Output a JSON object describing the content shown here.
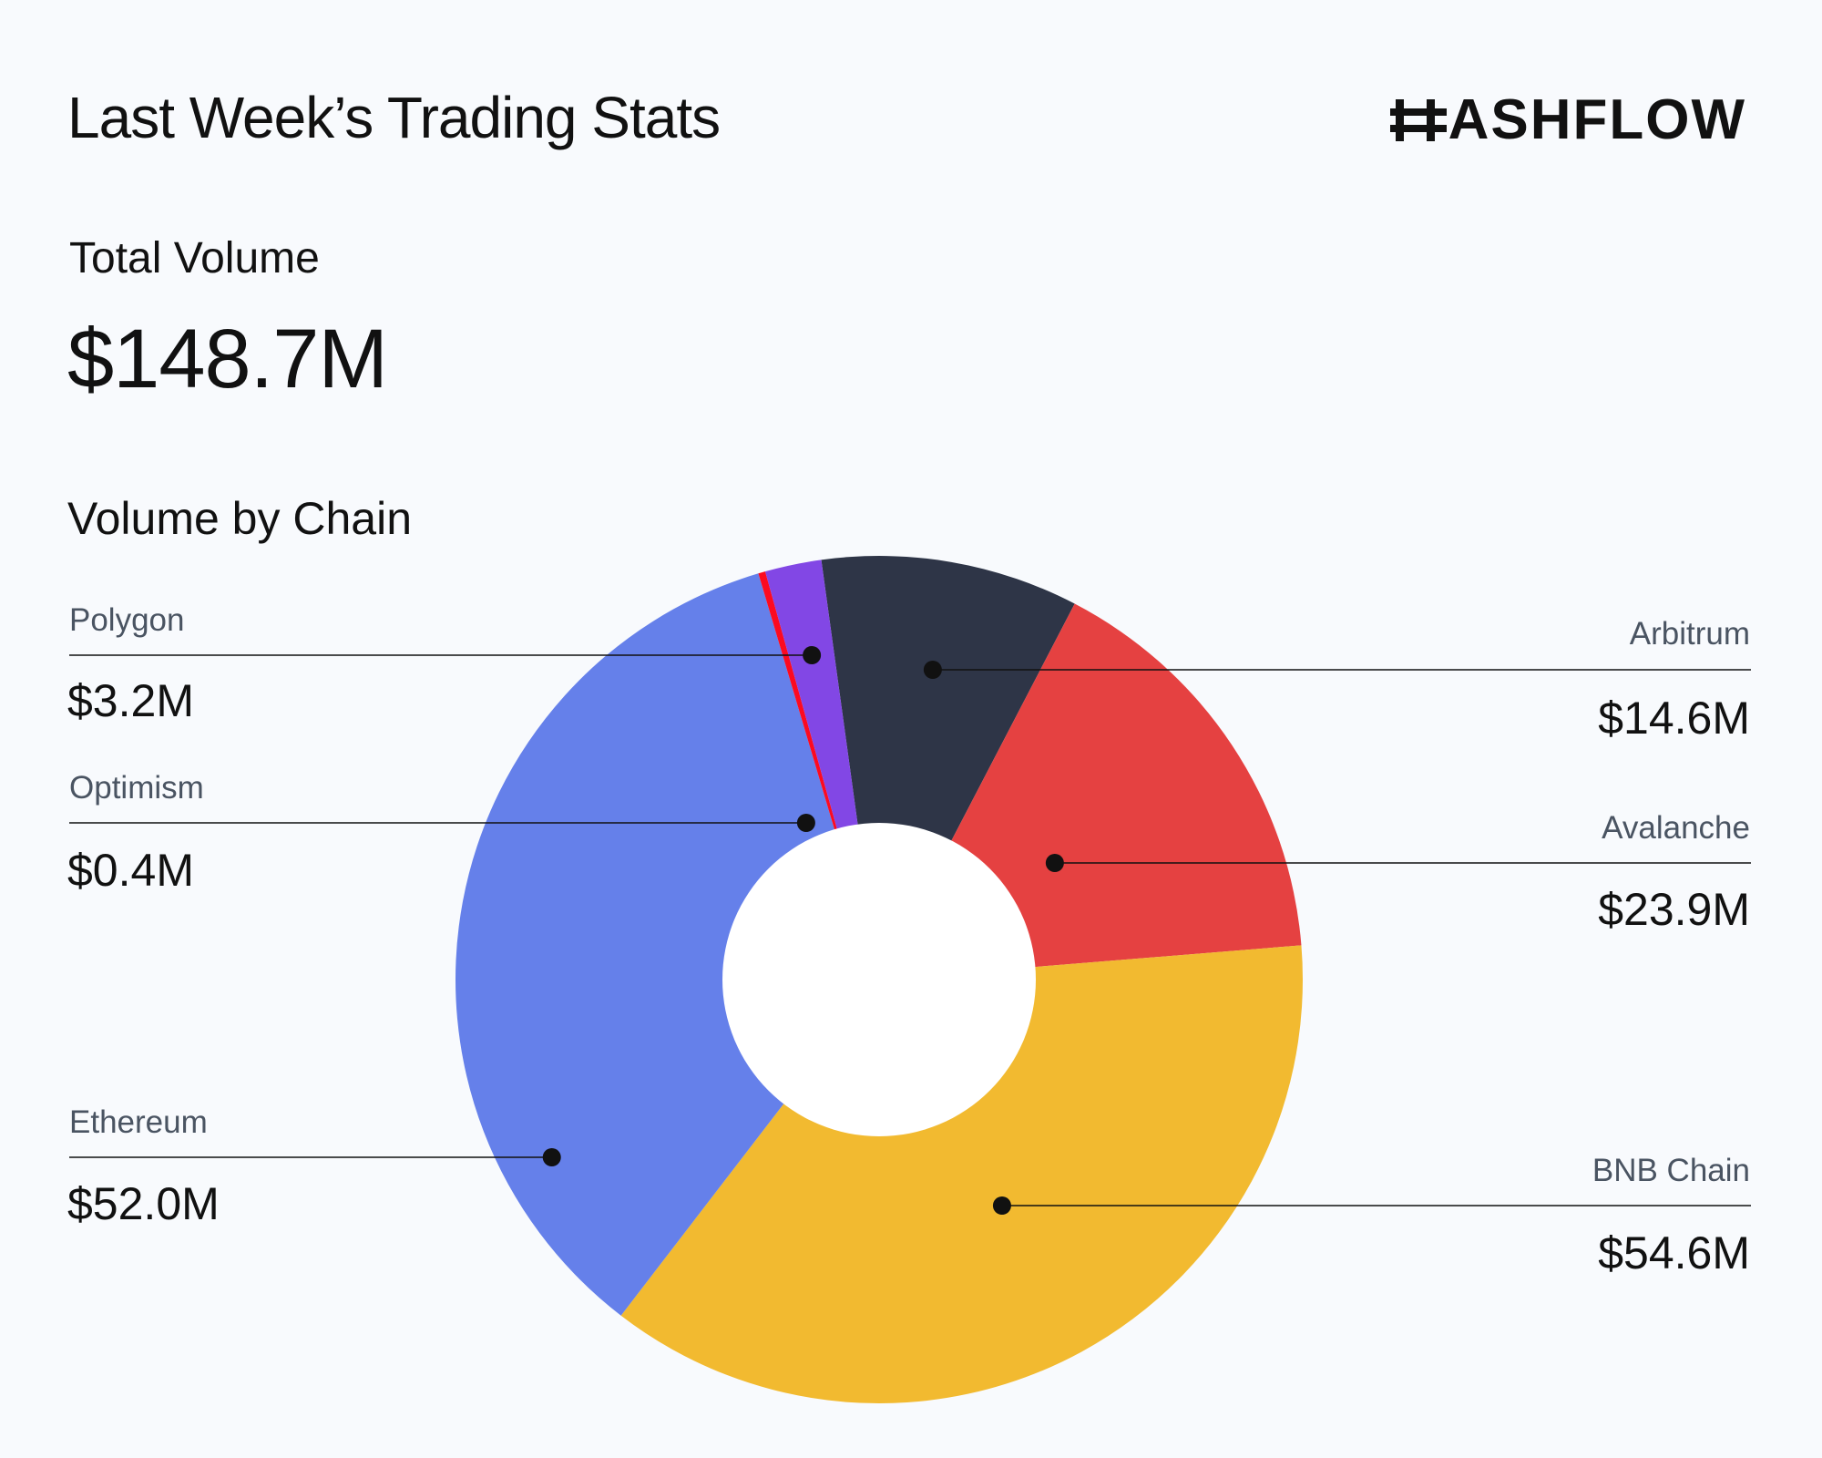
{
  "header": {
    "title": "Last Week’s Trading Stats",
    "brand": "ASHFLOW"
  },
  "total": {
    "label": "Total Volume",
    "value": "$148.7M"
  },
  "section": {
    "label": "Volume by Chain"
  },
  "colors": {
    "background": "#f8fafd",
    "text": "#111111",
    "muted": "#4a5462"
  },
  "chart_data": {
    "type": "pie",
    "title": "Volume by Chain",
    "unit": "$M",
    "slices": [
      {
        "name": "Arbitrum",
        "value": 14.6,
        "label": "$14.6M",
        "color": "#2e3547",
        "side": "right"
      },
      {
        "name": "Avalanche",
        "value": 23.9,
        "label": "$23.9M",
        "color": "#e54141",
        "side": "right"
      },
      {
        "name": "BNB Chain",
        "value": 54.6,
        "label": "$54.6M",
        "color": "#f2ba30",
        "side": "right"
      },
      {
        "name": "Ethereum",
        "value": 52.0,
        "label": "$52.0M",
        "color": "#6580ea",
        "side": "left"
      },
      {
        "name": "Optimism",
        "value": 0.4,
        "label": "$0.4M",
        "color": "#fc0a21",
        "side": "left"
      },
      {
        "name": "Polygon",
        "value": 3.2,
        "label": "$3.2M",
        "color": "#8247e5",
        "side": "left"
      }
    ]
  }
}
